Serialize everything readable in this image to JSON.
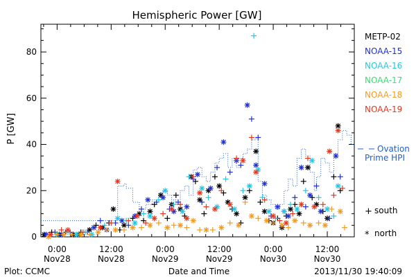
{
  "chart_data": {
    "type": "scatter",
    "title": "Hemispheric Power [GW]",
    "ylabel": "P [GW]",
    "xlabel": "Date and Time",
    "ylim": [
      0,
      92
    ],
    "yticks": [
      0,
      20,
      40,
      60,
      80
    ],
    "xlim": [
      -0.15,
      2.75
    ],
    "x_unit": "days after 2013/11/28 00:00",
    "xticks": [
      {
        "x": 0.0,
        "line1": "0:00",
        "line2": "Nov28"
      },
      {
        "x": 0.5,
        "line1": "12:00",
        "line2": "Nov28"
      },
      {
        "x": 1.0,
        "line1": "0:00",
        "line2": "Nov29"
      },
      {
        "x": 1.5,
        "line1": "12:00",
        "line2": "Nov29"
      },
      {
        "x": 2.0,
        "line1": "0:00",
        "line2": "Nov30"
      },
      {
        "x": 2.5,
        "line1": "12:00",
        "line2": "Nov30"
      }
    ],
    "legend_position": "right",
    "series": [
      {
        "name": "METP-02",
        "color": "#000000",
        "points": [
          [
            -0.12,
            1
          ],
          [
            -0.05,
            2
          ],
          [
            0.02,
            1
          ],
          [
            0.08,
            2
          ],
          [
            0.15,
            1
          ],
          [
            0.22,
            2
          ],
          [
            0.3,
            3
          ],
          [
            0.36,
            5
          ],
          [
            0.42,
            4
          ],
          [
            0.48,
            6
          ],
          [
            0.52,
            12
          ],
          [
            0.58,
            3
          ],
          [
            0.62,
            5
          ],
          [
            0.7,
            8
          ],
          [
            0.76,
            10
          ],
          [
            0.8,
            7
          ],
          [
            0.86,
            11
          ],
          [
            0.9,
            14
          ],
          [
            0.96,
            18
          ],
          [
            1.02,
            8
          ],
          [
            1.06,
            14
          ],
          [
            1.1,
            18
          ],
          [
            1.14,
            12
          ],
          [
            1.18,
            9
          ],
          [
            1.24,
            26
          ],
          [
            1.28,
            24
          ],
          [
            1.32,
            16
          ],
          [
            1.36,
            10
          ],
          [
            1.4,
            20
          ],
          [
            1.46,
            26
          ],
          [
            1.5,
            22
          ],
          [
            1.54,
            19
          ],
          [
            1.58,
            15
          ],
          [
            1.62,
            12
          ],
          [
            1.66,
            10
          ],
          [
            1.7,
            6
          ],
          [
            1.74,
            17
          ],
          [
            1.78,
            20
          ],
          [
            1.84,
            37
          ],
          [
            1.88,
            15
          ],
          [
            1.92,
            11
          ],
          [
            1.96,
            7
          ],
          [
            2.0,
            6
          ],
          [
            2.04,
            8
          ],
          [
            2.08,
            4
          ],
          [
            2.12,
            9
          ],
          [
            2.16,
            12
          ],
          [
            2.2,
            14
          ],
          [
            2.24,
            10
          ],
          [
            2.28,
            24
          ],
          [
            2.32,
            30
          ],
          [
            2.36,
            17
          ],
          [
            2.4,
            14
          ],
          [
            2.46,
            11
          ],
          [
            2.5,
            8
          ],
          [
            2.56,
            26
          ],
          [
            2.6,
            48
          ],
          [
            2.62,
            20
          ]
        ]
      },
      {
        "name": "NOAA-15",
        "color": "#1f2fd0",
        "points": [
          [
            -0.1,
            1
          ],
          [
            -0.02,
            2
          ],
          [
            0.04,
            1
          ],
          [
            0.12,
            2
          ],
          [
            0.2,
            1
          ],
          [
            0.28,
            2
          ],
          [
            0.34,
            4
          ],
          [
            0.4,
            7
          ],
          [
            0.46,
            3
          ],
          [
            0.54,
            6
          ],
          [
            0.6,
            7
          ],
          [
            0.66,
            5
          ],
          [
            0.72,
            9
          ],
          [
            0.78,
            12
          ],
          [
            0.84,
            16
          ],
          [
            0.92,
            15
          ],
          [
            0.98,
            17
          ],
          [
            1.04,
            12
          ],
          [
            1.08,
            11
          ],
          [
            1.12,
            15
          ],
          [
            1.2,
            13
          ],
          [
            1.26,
            25
          ],
          [
            1.3,
            27
          ],
          [
            1.34,
            15
          ],
          [
            1.42,
            21
          ],
          [
            1.48,
            30
          ],
          [
            1.54,
            41
          ],
          [
            1.6,
            28
          ],
          [
            1.66,
            33
          ],
          [
            1.7,
            31
          ],
          [
            1.76,
            57
          ],
          [
            1.8,
            51
          ],
          [
            1.84,
            31
          ],
          [
            1.86,
            43
          ],
          [
            1.92,
            23
          ],
          [
            1.98,
            9
          ],
          [
            2.04,
            13
          ],
          [
            2.1,
            11
          ],
          [
            2.14,
            9
          ],
          [
            2.2,
            17
          ],
          [
            2.26,
            30
          ],
          [
            2.3,
            13
          ],
          [
            2.34,
            18
          ],
          [
            2.4,
            22
          ],
          [
            2.44,
            11
          ],
          [
            2.52,
            8
          ],
          [
            2.58,
            35
          ],
          [
            2.62,
            26
          ]
        ]
      },
      {
        "name": "NOAA-16",
        "color": "#22c6e6",
        "points": [
          [
            0.0,
            1
          ],
          [
            0.1,
            2
          ],
          [
            0.18,
            1
          ],
          [
            0.26,
            2
          ],
          [
            0.32,
            1
          ],
          [
            0.44,
            5
          ],
          [
            0.56,
            8
          ],
          [
            0.64,
            7
          ],
          [
            0.72,
            6
          ],
          [
            0.8,
            10
          ],
          [
            0.86,
            9
          ],
          [
            0.94,
            16
          ],
          [
            1.0,
            20
          ],
          [
            1.08,
            14
          ],
          [
            1.16,
            11
          ],
          [
            1.22,
            26
          ],
          [
            1.34,
            21
          ],
          [
            1.4,
            17
          ],
          [
            1.48,
            13
          ],
          [
            1.56,
            25
          ],
          [
            1.64,
            12
          ],
          [
            1.72,
            20
          ],
          [
            1.78,
            22
          ],
          [
            1.82,
            87
          ],
          [
            1.86,
            29
          ],
          [
            1.9,
            17
          ],
          [
            1.96,
            11
          ],
          [
            2.02,
            8
          ],
          [
            2.1,
            11
          ],
          [
            2.16,
            14
          ],
          [
            2.22,
            12
          ],
          [
            2.3,
            20
          ],
          [
            2.36,
            33
          ],
          [
            2.42,
            17
          ],
          [
            2.5,
            12
          ],
          [
            2.56,
            9
          ],
          [
            2.6,
            22
          ]
        ]
      },
      {
        "name": "NOAA-17",
        "color": "#33e070",
        "points": []
      },
      {
        "name": "NOAA-18",
        "color": "#f29a1f",
        "points": [
          [
            -0.08,
            0
          ],
          [
            0.0,
            1
          ],
          [
            0.06,
            1
          ],
          [
            0.14,
            1
          ],
          [
            0.22,
            1
          ],
          [
            0.3,
            1
          ],
          [
            0.38,
            2
          ],
          [
            0.46,
            3
          ],
          [
            0.54,
            3
          ],
          [
            0.62,
            3
          ],
          [
            0.7,
            4
          ],
          [
            0.78,
            4
          ],
          [
            0.86,
            5
          ],
          [
            0.94,
            6
          ],
          [
            1.02,
            4
          ],
          [
            1.08,
            5
          ],
          [
            1.14,
            5
          ],
          [
            1.2,
            4
          ],
          [
            1.26,
            7
          ],
          [
            1.32,
            3
          ],
          [
            1.38,
            3
          ],
          [
            1.44,
            3
          ],
          [
            1.52,
            4
          ],
          [
            1.6,
            6
          ],
          [
            1.68,
            5
          ],
          [
            1.74,
            15
          ],
          [
            1.8,
            9
          ],
          [
            1.86,
            8
          ],
          [
            1.94,
            7
          ],
          [
            2.0,
            6
          ],
          [
            2.08,
            5
          ],
          [
            2.14,
            4
          ],
          [
            2.2,
            7
          ],
          [
            2.28,
            6
          ],
          [
            2.34,
            5
          ],
          [
            2.42,
            6
          ],
          [
            2.48,
            5
          ],
          [
            2.54,
            12
          ],
          [
            2.62,
            11
          ],
          [
            2.66,
            4
          ]
        ]
      },
      {
        "name": "NOAA-19",
        "color": "#e8351c",
        "points": [
          [
            -0.06,
            1
          ],
          [
            0.04,
            3
          ],
          [
            0.1,
            3
          ],
          [
            0.24,
            2
          ],
          [
            0.4,
            4
          ],
          [
            0.5,
            6
          ],
          [
            0.56,
            24
          ],
          [
            0.66,
            7
          ],
          [
            0.74,
            9
          ],
          [
            0.82,
            6
          ],
          [
            0.9,
            8
          ],
          [
            0.98,
            10
          ],
          [
            1.06,
            12
          ],
          [
            1.14,
            14
          ],
          [
            1.2,
            8
          ],
          [
            1.26,
            26
          ],
          [
            1.32,
            19
          ],
          [
            1.38,
            13
          ],
          [
            1.46,
            12
          ],
          [
            1.52,
            20
          ],
          [
            1.6,
            14
          ],
          [
            1.66,
            34
          ],
          [
            1.72,
            33
          ],
          [
            1.8,
            43
          ],
          [
            1.84,
            28
          ],
          [
            1.92,
            16
          ],
          [
            2.0,
            9
          ],
          [
            2.06,
            7
          ],
          [
            2.12,
            6
          ],
          [
            2.18,
            10
          ],
          [
            2.26,
            14
          ],
          [
            2.32,
            34
          ],
          [
            2.38,
            13
          ],
          [
            2.46,
            14
          ],
          [
            2.52,
            37
          ],
          [
            2.56,
            18
          ],
          [
            2.6,
            46
          ],
          [
            2.64,
            21
          ]
        ]
      }
    ],
    "ovation_series": {
      "name": "Ovation Prime HPI",
      "color": "#1f5fd0",
      "steps": [
        [
          -0.15,
          7
        ],
        [
          0.55,
          7
        ],
        [
          0.56,
          22
        ],
        [
          0.62,
          23
        ],
        [
          0.64,
          21
        ],
        [
          0.7,
          15
        ],
        [
          0.76,
          12
        ],
        [
          0.82,
          14
        ],
        [
          0.88,
          16
        ],
        [
          0.94,
          19
        ],
        [
          0.98,
          20
        ],
        [
          1.02,
          18
        ],
        [
          1.06,
          16
        ],
        [
          1.1,
          14
        ],
        [
          1.14,
          20
        ],
        [
          1.18,
          22
        ],
        [
          1.22,
          18
        ],
        [
          1.26,
          29
        ],
        [
          1.3,
          30
        ],
        [
          1.34,
          26
        ],
        [
          1.38,
          24
        ],
        [
          1.42,
          28
        ],
        [
          1.46,
          32
        ],
        [
          1.5,
          34
        ],
        [
          1.54,
          36
        ],
        [
          1.58,
          30
        ],
        [
          1.62,
          34
        ],
        [
          1.66,
          30
        ],
        [
          1.7,
          34
        ],
        [
          1.72,
          36
        ],
        [
          1.76,
          38
        ],
        [
          1.8,
          42
        ],
        [
          1.84,
          43
        ],
        [
          1.86,
          24
        ],
        [
          1.9,
          18
        ],
        [
          1.94,
          16
        ],
        [
          1.98,
          14
        ],
        [
          2.02,
          12
        ],
        [
          2.06,
          14
        ],
        [
          2.1,
          20
        ],
        [
          2.14,
          25
        ],
        [
          2.18,
          22
        ],
        [
          2.22,
          34
        ],
        [
          2.26,
          38
        ],
        [
          2.3,
          35
        ],
        [
          2.34,
          28
        ],
        [
          2.38,
          20
        ],
        [
          2.4,
          26
        ],
        [
          2.44,
          34
        ],
        [
          2.48,
          32
        ],
        [
          2.52,
          28
        ],
        [
          2.56,
          36
        ],
        [
          2.6,
          42
        ],
        [
          2.64,
          46
        ],
        [
          2.68,
          44
        ],
        [
          2.72,
          40
        ],
        [
          2.75,
          40
        ]
      ]
    }
  },
  "legend": {
    "items": [
      {
        "label": "METP-02",
        "color": "#000000"
      },
      {
        "label": "NOAA-15",
        "color": "#1f2fd0"
      },
      {
        "label": "NOAA-16",
        "color": "#22c6e6"
      },
      {
        "label": "NOAA-17",
        "color": "#33e070"
      },
      {
        "label": "NOAA-18",
        "color": "#f29a1f"
      },
      {
        "label": "NOAA-19",
        "color": "#e8351c"
      }
    ],
    "ovation_line1": "Ovation",
    "ovation_line2": "Prime HPI",
    "south_symbol": "+",
    "south_label": "south",
    "north_symbol": "*",
    "north_label": "north"
  },
  "footer": {
    "plot_credit": "Plot: CCMC",
    "timestamp": "2013/11/30 19:40:09"
  }
}
